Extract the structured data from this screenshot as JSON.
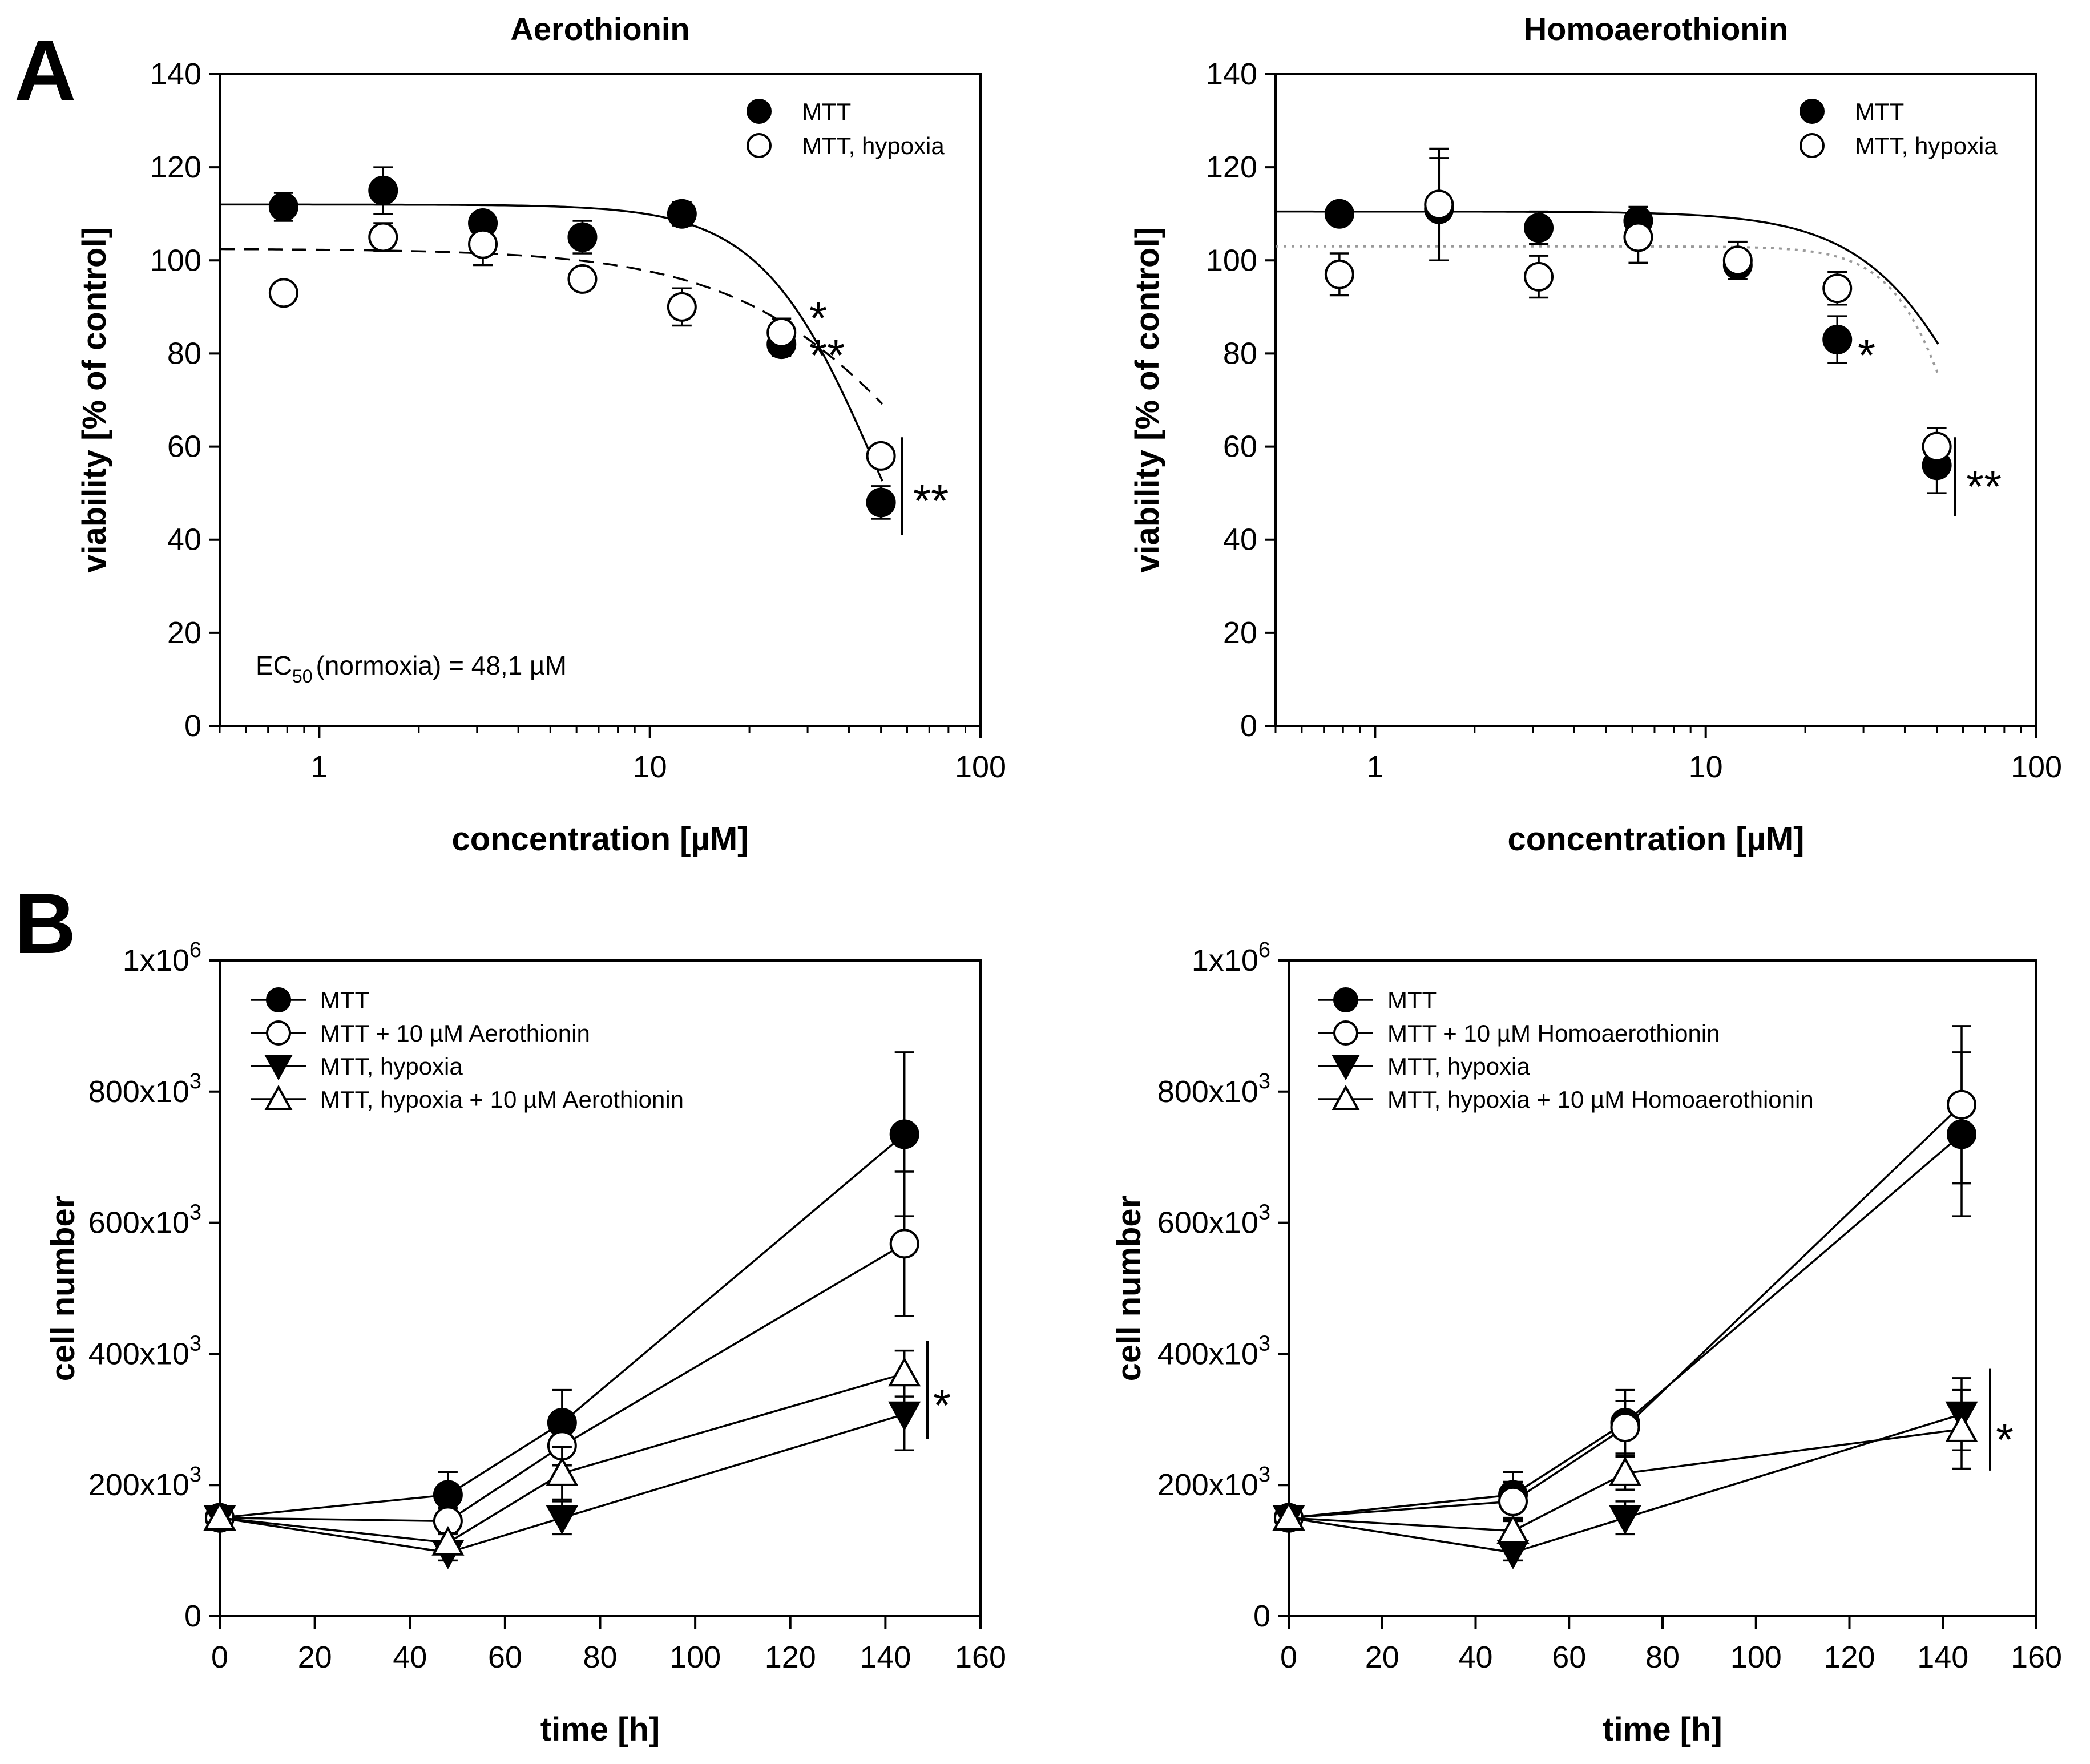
{
  "panel_labels": {
    "a": "A",
    "b": "B"
  },
  "annotation_text": {
    "ec_sub": "50",
    "ec_rest": "(normoxia)  = 48,1 µM"
  },
  "chart_data": [
    {
      "type": "scatter",
      "title": "Aerothionin",
      "xlabel": "concentration [µM]",
      "ylabel": "viability [% of control]",
      "xscale": "log",
      "xlim": [
        0.5,
        100
      ],
      "ylim": [
        0,
        140
      ],
      "xticks": [
        1,
        10,
        100
      ],
      "xtick_labels": [
        "1",
        "10",
        "100"
      ],
      "yticks": [
        0,
        20,
        40,
        60,
        80,
        100,
        120,
        140
      ],
      "legend_position": "top-right",
      "annotation": "EC50 (normoxia) = 48,1 µM",
      "significance": [
        "*",
        "**",
        "**"
      ],
      "series": [
        {
          "name": "MTT",
          "marker": "filled-circle",
          "line": "solid",
          "x": [
            0.78,
            1.56,
            3.125,
            6.25,
            12.5,
            25,
            50
          ],
          "y": [
            111.5,
            115,
            108,
            105,
            110,
            82,
            48
          ],
          "err": [
            3,
            5,
            2,
            3.5,
            2.5,
            2.5,
            3.5
          ],
          "fit": {
            "top": 112,
            "bottom": 0,
            "ec50": 48.1,
            "hill": 2.5
          }
        },
        {
          "name": "MTT, hypoxia",
          "marker": "open-circle",
          "line": "dashed",
          "x": [
            0.78,
            1.56,
            3.125,
            6.25,
            12.5,
            25,
            50
          ],
          "y": [
            93,
            105,
            103.5,
            96,
            90,
            84.5,
            58
          ],
          "err": [
            1.5,
            3,
            4.5,
            2,
            4,
            3,
            2
          ],
          "fit": {
            "top": 102.5,
            "bottom": 0,
            "ec50": 85,
            "hill": 1.4
          }
        }
      ]
    },
    {
      "type": "scatter",
      "title": "Homoaerothionin",
      "xlabel": "concentration [µM]",
      "ylabel": "viability [% of control]",
      "xscale": "log",
      "xlim": [
        0.5,
        100
      ],
      "ylim": [
        0,
        140
      ],
      "xticks": [
        1,
        10,
        100
      ],
      "xtick_labels": [
        "1",
        "10",
        "100"
      ],
      "yticks": [
        0,
        20,
        40,
        60,
        80,
        100,
        120,
        140
      ],
      "legend_position": "top-right",
      "significance": [
        "*",
        "**"
      ],
      "series": [
        {
          "name": "MTT",
          "marker": "filled-circle",
          "line": "solid",
          "x": [
            0.78,
            1.56,
            3.125,
            6.25,
            12.5,
            25,
            50
          ],
          "y": [
            110,
            111,
            107,
            108.5,
            99,
            83,
            56
          ],
          "err": [
            2,
            11,
            3.5,
            3,
            2,
            5,
            6
          ],
          "fit": {
            "top": 110.5,
            "bottom": 0,
            "ec50": 80,
            "hill": 2.3
          }
        },
        {
          "name": "MTT, hypoxia",
          "marker": "open-circle",
          "line": "dotted",
          "x": [
            0.78,
            1.56,
            3.125,
            6.25,
            12.5,
            25,
            50
          ],
          "y": [
            97,
            112,
            96.5,
            105,
            100,
            94,
            60
          ],
          "err": [
            4.5,
            12,
            4.5,
            5.5,
            4,
            3.5,
            4
          ],
          "fit": {
            "top": 103,
            "bottom": 0,
            "ec50": 65,
            "hill": 4
          }
        }
      ]
    },
    {
      "type": "line",
      "title": "",
      "xlabel": "time [h]",
      "ylabel": "cell number",
      "xlim": [
        0,
        160
      ],
      "ylim": [
        0,
        1000000
      ],
      "xticks": [
        0,
        20,
        40,
        60,
        80,
        100,
        120,
        140,
        160
      ],
      "yticks": [
        0,
        200000,
        400000,
        600000,
        800000,
        1000000
      ],
      "ytick_labels": [
        {
          "value": 0,
          "base": "0",
          "exp": ""
        },
        {
          "value": 200000,
          "base": "200x10",
          "exp": "3"
        },
        {
          "value": 400000,
          "base": "400x10",
          "exp": "3"
        },
        {
          "value": 600000,
          "base": "600x10",
          "exp": "3"
        },
        {
          "value": 800000,
          "base": "800x10",
          "exp": "3"
        },
        {
          "value": 1000000,
          "base": "1x10",
          "exp": "6"
        }
      ],
      "legend_position": "top-left",
      "significance": [
        "*"
      ],
      "series": [
        {
          "name": "MTT",
          "marker": "filled-circle",
          "x": [
            0,
            48,
            72,
            144
          ],
          "y": [
            150000,
            185000,
            295000,
            735000
          ],
          "err": [
            0,
            35000,
            50000,
            125000
          ]
        },
        {
          "name": "MTT + 10 µM Aerothionin",
          "marker": "open-circle",
          "x": [
            0,
            48,
            72,
            144
          ],
          "y": [
            150000,
            145000,
            260000,
            568000
          ],
          "err": [
            0,
            20000,
            30000,
            110000
          ]
        },
        {
          "name": "MTT, hypoxia",
          "marker": "filled-triangle-down",
          "x": [
            0,
            48,
            72,
            144
          ],
          "y": [
            150000,
            97000,
            150000,
            308000
          ],
          "err": [
            0,
            12000,
            25000,
            55000
          ]
        },
        {
          "name": "MTT, hypoxia + 10 µM Aerothionin",
          "marker": "open-triangle-up",
          "x": [
            0,
            48,
            72,
            144
          ],
          "y": [
            150000,
            112000,
            218000,
            370000
          ],
          "err": [
            0,
            15000,
            40000,
            35000
          ]
        }
      ]
    },
    {
      "type": "line",
      "title": "",
      "xlabel": "time [h]",
      "ylabel": "cell number",
      "xlim": [
        0,
        160
      ],
      "ylim": [
        0,
        1000000
      ],
      "xticks": [
        0,
        20,
        40,
        60,
        80,
        100,
        120,
        140,
        160
      ],
      "yticks": [
        0,
        200000,
        400000,
        600000,
        800000,
        1000000
      ],
      "ytick_labels": [
        {
          "value": 0,
          "base": "0",
          "exp": ""
        },
        {
          "value": 200000,
          "base": "200x10",
          "exp": "3"
        },
        {
          "value": 400000,
          "base": "400x10",
          "exp": "3"
        },
        {
          "value": 600000,
          "base": "600x10",
          "exp": "3"
        },
        {
          "value": 800000,
          "base": "800x10",
          "exp": "3"
        },
        {
          "value": 1000000,
          "base": "1x10",
          "exp": "6"
        }
      ],
      "legend_position": "top-left",
      "significance": [
        "*"
      ],
      "series": [
        {
          "name": "MTT",
          "marker": "filled-circle",
          "x": [
            0,
            48,
            72,
            144
          ],
          "y": [
            150000,
            185000,
            295000,
            735000
          ],
          "err": [
            0,
            35000,
            50000,
            125000
          ]
        },
        {
          "name": "MTT + 10 µM Homoaerothionin",
          "marker": "open-circle",
          "x": [
            0,
            48,
            72,
            144
          ],
          "y": [
            150000,
            175000,
            288000,
            780000
          ],
          "err": [
            0,
            30000,
            40000,
            120000
          ]
        },
        {
          "name": "MTT, hypoxia",
          "marker": "filled-triangle-down",
          "x": [
            0,
            48,
            72,
            144
          ],
          "y": [
            150000,
            97000,
            150000,
            308000
          ],
          "err": [
            0,
            12000,
            25000,
            55000
          ]
        },
        {
          "name": "MTT, hypoxia + 10 µM Homoaerothionin",
          "marker": "open-triangle-up",
          "x": [
            0,
            48,
            72,
            144
          ],
          "y": [
            150000,
            130000,
            218000,
            285000
          ],
          "err": [
            0,
            18000,
            25000,
            60000
          ]
        }
      ]
    }
  ]
}
